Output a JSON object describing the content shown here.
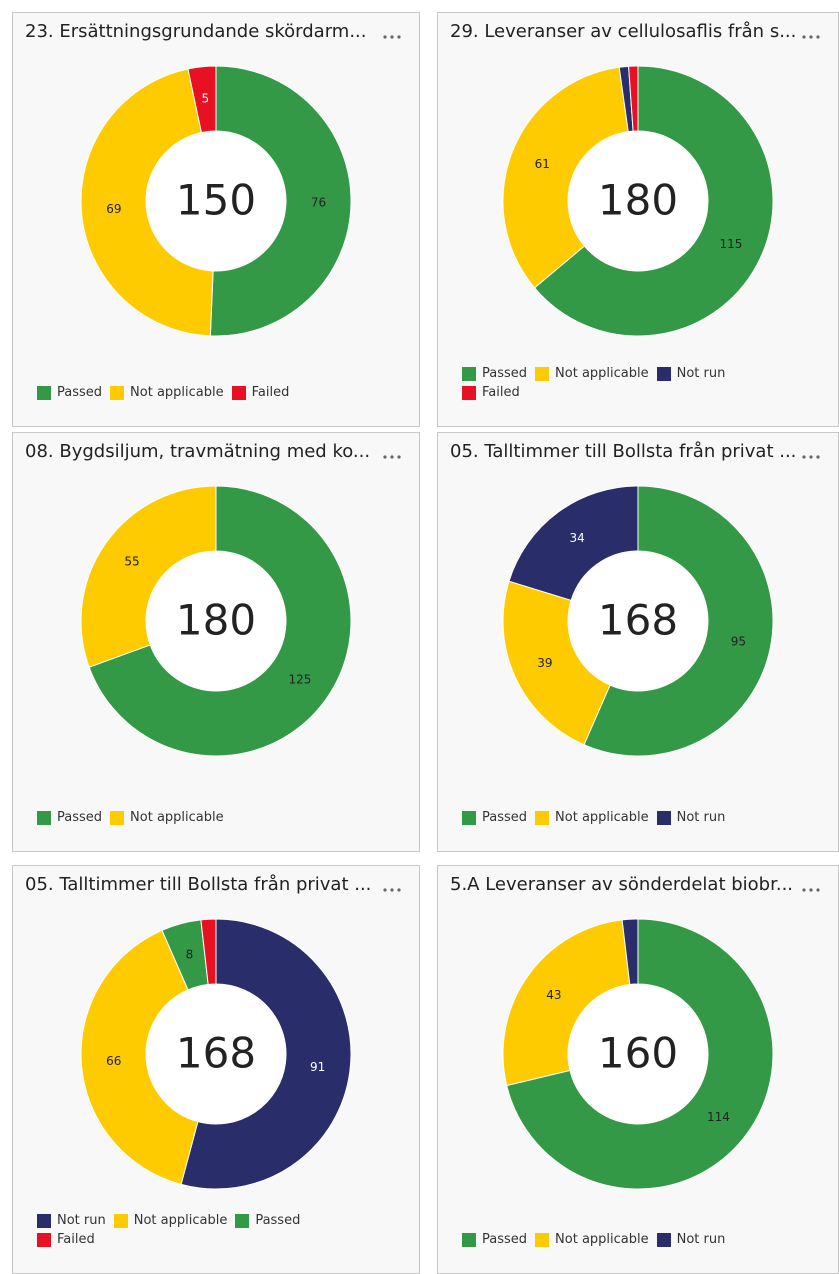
{
  "chart_data": [
    {
      "type": "donut",
      "title": "23. Ersättningsgrundande skördarm...",
      "total": 150,
      "categories": [
        "Passed",
        "Not applicable",
        "Failed"
      ],
      "values": [
        76,
        69,
        5
      ],
      "colors": [
        "#339947",
        "#fecb00",
        "#e81123"
      ]
    },
    {
      "type": "donut",
      "title": "29. Leveranser av cellulosaflis från s...",
      "total": 180,
      "categories": [
        "Passed",
        "Not applicable",
        "Not run",
        "Failed"
      ],
      "values": [
        115,
        61,
        2,
        2
      ],
      "colors": [
        "#339947",
        "#fecb00",
        "#292e6b",
        "#e81123"
      ]
    },
    {
      "type": "donut",
      "title": "08. Bygdsiljum, travmätning med ko...",
      "total": 180,
      "categories": [
        "Passed",
        "Not applicable"
      ],
      "values": [
        125,
        55
      ],
      "colors": [
        "#339947",
        "#fecb00"
      ]
    },
    {
      "type": "donut",
      "title": "05. Talltimmer till Bollsta från privat ...",
      "total": 168,
      "categories": [
        "Passed",
        "Not applicable",
        "Not run"
      ],
      "values": [
        95,
        39,
        34
      ],
      "colors": [
        "#339947",
        "#fecb00",
        "#292e6b"
      ]
    },
    {
      "type": "donut",
      "title": "05. Talltimmer till Bollsta från privat ...",
      "total": 168,
      "categories": [
        "Not run",
        "Not applicable",
        "Passed",
        "Failed"
      ],
      "values": [
        91,
        66,
        8,
        3
      ],
      "colors": [
        "#292e6b",
        "#fecb00",
        "#339947",
        "#e81123"
      ]
    },
    {
      "type": "donut",
      "title": "5.A Leveranser av sönderdelat biobr...",
      "total": 160,
      "categories": [
        "Passed",
        "Not applicable",
        "Not run"
      ],
      "values": [
        114,
        43,
        3
      ],
      "colors": [
        "#339947",
        "#fecb00",
        "#292e6b"
      ]
    }
  ]
}
